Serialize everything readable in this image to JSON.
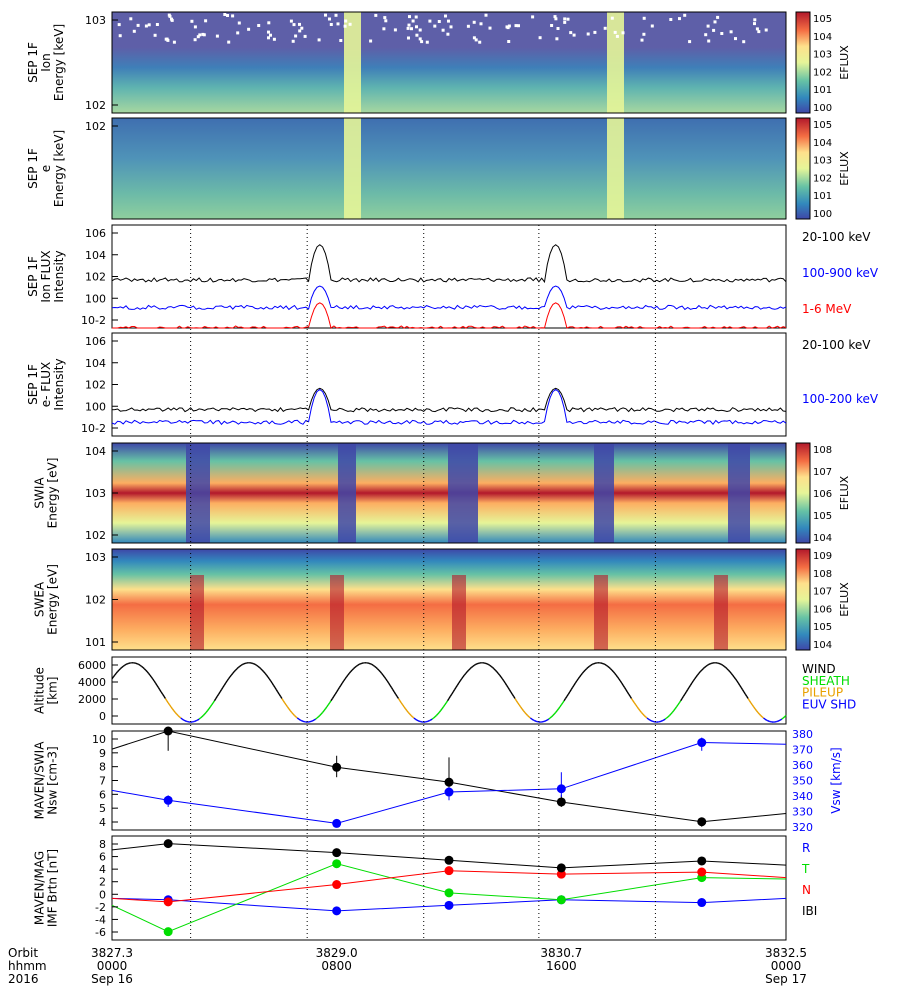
{
  "colors": {
    "black": "#000000",
    "blue": "#0000ff",
    "red": "#ff0000",
    "green": "#00dd00",
    "orange": "#e8a000",
    "cbar_red": "#b2182b",
    "cbar_blue": "#3f47a8"
  },
  "time_axis": {
    "orbit_label": "Orbit",
    "hhmm_label": "hhmm",
    "year_label": "2016",
    "ticks": [
      {
        "t": 0,
        "orbit": "3827.3",
        "hhmm": "0000",
        "date": "Sep 16"
      },
      {
        "t": 8,
        "orbit": "3829.0",
        "hhmm": "0800",
        "date": ""
      },
      {
        "t": 16,
        "orbit": "3830.7",
        "hhmm": "1600",
        "date": ""
      },
      {
        "t": 24,
        "orbit": "3832.5",
        "hhmm": "0000",
        "date": "Sep 17"
      }
    ],
    "vertical_dotted_lines_hours": [
      2.8,
      6.95,
      11.1,
      15.2,
      19.35
    ]
  },
  "panels": [
    {
      "id": "sep-ion-spec",
      "ylabel": [
        "SEP 1F",
        "Ion",
        "Energy [keV]"
      ],
      "cbar_label": "EFLUX",
      "cbar_ticks": [
        "10^5",
        "10^4",
        "10^3",
        "10^2",
        "10^1",
        "10^0"
      ],
      "yticks": [
        "10^3",
        "10^2"
      ]
    },
    {
      "id": "sep-e-spec",
      "ylabel": [
        "SEP 1F",
        "e",
        "Energy [keV]"
      ],
      "cbar_label": "EFLUX",
      "cbar_ticks": [
        "10^5",
        "10^4",
        "10^3",
        "10^2",
        "10^1",
        "10^0"
      ],
      "yticks": [
        "10^2"
      ]
    },
    {
      "id": "sep-ion-flux",
      "ylabel": [
        "SEP 1F",
        "Ion FLUX",
        "Intensity"
      ],
      "yticks": [
        "10^6",
        "10^4",
        "10^2",
        "10^0",
        "10^-2"
      ],
      "legend": [
        {
          "text": "20-100 keV",
          "color": "#000000"
        },
        {
          "text": "100-900 keV",
          "color": "#0000ff"
        },
        {
          "text": "1-6 MeV",
          "color": "#ff0000"
        }
      ]
    },
    {
      "id": "sep-e-flux",
      "ylabel": [
        "SEP 1F",
        "e- FLUX",
        "Intensity"
      ],
      "yticks": [
        "10^6",
        "10^4",
        "10^2",
        "10^0",
        "10^-2"
      ],
      "legend": [
        {
          "text": "20-100 keV",
          "color": "#000000"
        },
        {
          "text": "100-200 keV",
          "color": "#0000ff"
        }
      ]
    },
    {
      "id": "swia-spec",
      "ylabel": [
        "SWIA",
        "Energy [eV]"
      ],
      "cbar_label": "EFLUX",
      "cbar_ticks": [
        "10^8",
        "10^7",
        "10^6",
        "10^5",
        "10^4"
      ],
      "yticks": [
        "10^4",
        "10^3",
        "10^2"
      ]
    },
    {
      "id": "swea-spec",
      "ylabel": [
        "SWEA",
        "Energy [eV]"
      ],
      "cbar_label": "EFLUX",
      "cbar_ticks": [
        "10^9",
        "10^8",
        "10^7",
        "10^6",
        "10^5",
        "10^4"
      ],
      "yticks": [
        "10^3",
        "10^2",
        "10^1"
      ]
    },
    {
      "id": "altitude",
      "ylabel": [
        "Altitude",
        "[km]"
      ],
      "yticks": [
        "6000",
        "4000",
        "2000",
        "0"
      ],
      "legend": [
        {
          "text": "WIND",
          "color": "#000000"
        },
        {
          "text": "SHEATH",
          "color": "#00dd00"
        },
        {
          "text": "PILEUP",
          "color": "#e8a000"
        },
        {
          "text": "EUV SHD",
          "color": "#0000ff"
        }
      ]
    },
    {
      "id": "swia-moments",
      "ylabel": [
        "MAVEN/SWIA",
        "Nsw [cm-3]"
      ],
      "ylabel_right": "Vsw [km/s]",
      "yticks": [
        "10",
        "9",
        "8",
        "7",
        "6",
        "5",
        "4"
      ],
      "yticks_right": [
        "380",
        "370",
        "360",
        "350",
        "340",
        "330",
        "320"
      ]
    },
    {
      "id": "mag",
      "ylabel": [
        "MAVEN/MAG",
        "IMF Brtn [nT]"
      ],
      "yticks": [
        "8",
        "6",
        "4",
        "2",
        "0",
        "-2",
        "-4",
        "-6"
      ],
      "legend": [
        {
          "text": "R",
          "color": "#0000ff"
        },
        {
          "text": "T",
          "color": "#00dd00"
        },
        {
          "text": "N",
          "color": "#ff0000"
        },
        {
          "text": "IBI",
          "color": "#000000"
        }
      ]
    }
  ],
  "chart_data": [
    {
      "type": "line",
      "panel": "swia-moments",
      "xlabel": "hhmm",
      "ylabel": "Nsw [cm-3]",
      "ylim": [
        4,
        10
      ],
      "ylim_right": [
        320,
        380
      ],
      "series": [
        {
          "axis": "left",
          "color": "#000000",
          "x": [
            -1,
            2,
            8,
            12,
            16,
            21,
            25
          ],
          "y": [
            8.9,
            10.0,
            7.8,
            6.9,
            5.7,
            4.5,
            5.0
          ],
          "marker_x": [
            2,
            8,
            12,
            16,
            21
          ],
          "err_low": [
            8.8,
            7.2,
            6.1,
            5.4,
            4.2
          ],
          "err_high": [
            10.2,
            8.5,
            8.4,
            6.1,
            4.7
          ]
        },
        {
          "axis": "right",
          "color": "#0000ff",
          "x": [
            -1,
            2,
            8,
            12,
            16,
            21,
            25
          ],
          "y": [
            344,
            338,
            324,
            343,
            345,
            373,
            372
          ],
          "marker_x": [
            2,
            8,
            12,
            16,
            21
          ],
          "err_low": [
            334,
            322,
            338,
            340,
            368
          ],
          "err_high": [
            341,
            325,
            346,
            355,
            376
          ]
        }
      ]
    },
    {
      "type": "line",
      "panel": "mag",
      "xlabel": "hhmm",
      "ylabel": "IMF Brtn [nT]",
      "ylim": [
        -7,
        8
      ],
      "series": [
        {
          "name": "R",
          "color": "#0000ff",
          "x": [
            -1,
            2,
            8,
            12,
            16,
            21,
            25
          ],
          "y": [
            -1.0,
            -1.2,
            -2.8,
            -2.0,
            -1.2,
            -1.6,
            -1.0
          ]
        },
        {
          "name": "T",
          "color": "#00dd00",
          "x": [
            -1,
            2,
            8,
            12,
            16,
            21,
            25
          ],
          "y": [
            -2.0,
            -5.8,
            4.0,
            -0.2,
            -1.2,
            2.0,
            1.8
          ]
        },
        {
          "name": "N",
          "color": "#ff0000",
          "x": [
            -1,
            2,
            8,
            12,
            16,
            21,
            25
          ],
          "y": [
            -1.0,
            -1.5,
            1.0,
            3.0,
            2.5,
            2.8,
            2.0
          ]
        },
        {
          "name": "IBI",
          "color": "#000000",
          "x": [
            -1,
            2,
            8,
            12,
            16,
            21,
            25
          ],
          "y": [
            6.0,
            6.9,
            5.6,
            4.5,
            3.4,
            4.4,
            3.8
          ]
        }
      ]
    },
    {
      "type": "line",
      "panel": "altitude",
      "xlabel": "hhmm",
      "ylabel": "Altitude [km]",
      "ylim": [
        0,
        7000
      ],
      "periapsis_hours": [
        2.8,
        6.95,
        11.1,
        15.2,
        19.35,
        23.5
      ],
      "apoapsis_km": 6400,
      "periapsis_km": 200
    },
    {
      "type": "line",
      "panel": "sep-ion-flux",
      "xlabel": "hhmm",
      "ylabel": "Intensity",
      "ylim": [
        -3,
        6
      ],
      "series": [
        {
          "name": "20-100 keV",
          "color": "#000000",
          "base": 1.2,
          "peak": 4.0
        },
        {
          "name": "100-900 keV",
          "color": "#0000ff",
          "base": -1.2,
          "peak": 0.5
        },
        {
          "name": "1-6 MeV",
          "color": "#ff0000",
          "base": -3.0,
          "peak": -1.0
        }
      ],
      "event_hours": [
        [
          7.0,
          7.8
        ],
        [
          15.4,
          16.2
        ]
      ]
    },
    {
      "type": "line",
      "panel": "sep-e-flux",
      "xlabel": "hhmm",
      "ylabel": "Intensity",
      "ylim": [
        -3,
        6
      ],
      "series": [
        {
          "name": "20-100 keV",
          "color": "#000000",
          "base": -0.7,
          "peak": 1.0
        },
        {
          "name": "100-200 keV",
          "color": "#0000ff",
          "base": -1.8,
          "peak": 0.8
        }
      ],
      "event_hours": [
        [
          7.0,
          7.8
        ],
        [
          15.4,
          16.2
        ]
      ]
    }
  ]
}
